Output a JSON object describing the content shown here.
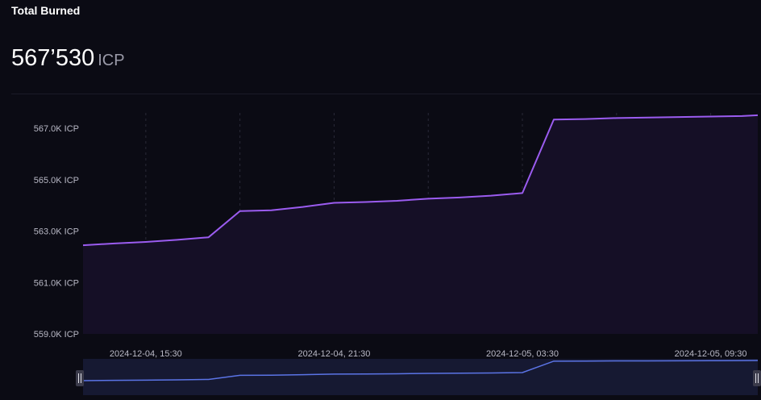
{
  "header": {
    "title": "Total Burned",
    "total_value": "567’530",
    "total_unit": "ICP"
  },
  "colors": {
    "line": "#9b5cf0",
    "area": "#150f26",
    "navigator_line": "#5b74e6",
    "navigator_area": "#161932",
    "grid": "#2a2a38",
    "text": "#b9b9c6"
  },
  "chart_data": {
    "type": "area",
    "title": "",
    "xlabel": "",
    "ylabel": "",
    "ylim": [
      559000,
      567600
    ],
    "yticks": [
      559000,
      561000,
      563000,
      565000,
      567000
    ],
    "ytick_labels": [
      "559.0K ICP",
      "561.0K ICP",
      "563.0K ICP",
      "565.0K ICP",
      "567.0K ICP"
    ],
    "xlim": [
      "2024-12-04 13:30",
      "2024-12-05 11:00"
    ],
    "xticks": [
      "2024-12-04 15:30",
      "2024-12-04 21:30",
      "2024-12-05 03:30",
      "2024-12-05 09:30"
    ],
    "xtick_labels": [
      "2024-12-04, 15:30",
      "2024-12-04, 21:30",
      "2024-12-05, 03:30",
      "2024-12-05, 09:30"
    ],
    "grid": "vertical dashed",
    "legend": "none",
    "navigator": true,
    "series": [
      {
        "x": [
          "2024-12-04 13:30",
          "2024-12-04 14:30",
          "2024-12-04 15:30",
          "2024-12-04 16:30",
          "2024-12-04 17:30",
          "2024-12-04 18:30",
          "2024-12-04 19:30",
          "2024-12-04 20:30",
          "2024-12-04 21:30",
          "2024-12-04 22:30",
          "2024-12-04 23:30",
          "2024-12-05 00:30",
          "2024-12-05 01:30",
          "2024-12-05 02:30",
          "2024-12-05 03:30",
          "2024-12-05 04:30",
          "2024-12-05 05:30",
          "2024-12-05 06:30",
          "2024-12-05 07:30",
          "2024-12-05 08:30",
          "2024-12-05 09:30",
          "2024-12-05 10:30",
          "2024-12-05 11:00"
        ],
        "values": [
          562450,
          562520,
          562580,
          562660,
          562760,
          563780,
          563810,
          563940,
          564100,
          564130,
          564180,
          564260,
          564310,
          564380,
          564480,
          567340,
          567360,
          567400,
          567420,
          567440,
          567460,
          567480,
          567510
        ]
      }
    ]
  }
}
